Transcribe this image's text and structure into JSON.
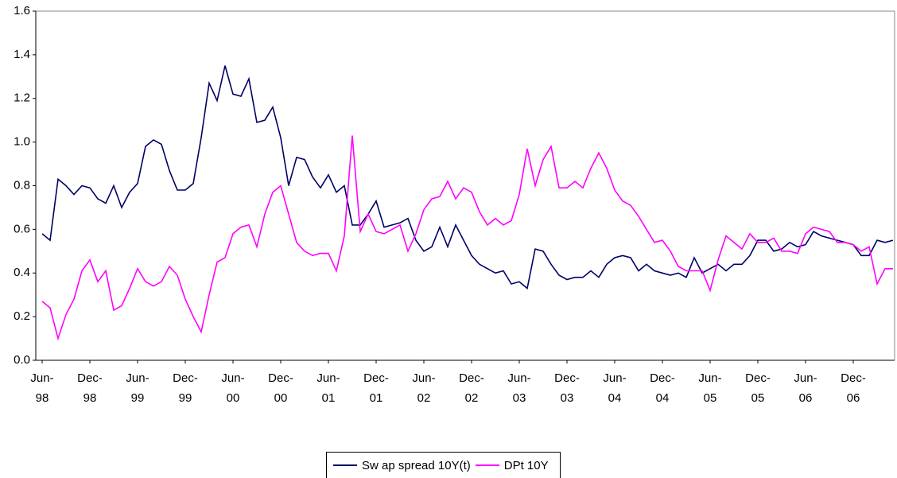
{
  "chart_data": {
    "type": "line",
    "categories": [
      "Jun-\n98",
      null,
      null,
      null,
      null,
      null,
      "Dec-\n98",
      null,
      null,
      null,
      null,
      null,
      "Jun-\n99",
      null,
      null,
      null,
      null,
      null,
      "Dec-\n99",
      null,
      null,
      null,
      null,
      null,
      "Jun-\n00",
      null,
      null,
      null,
      null,
      null,
      "Dec-\n00",
      null,
      null,
      null,
      null,
      null,
      "Jun-\n01",
      null,
      null,
      null,
      null,
      null,
      "Dec-\n01",
      null,
      null,
      null,
      null,
      null,
      "Jun-\n02",
      null,
      null,
      null,
      null,
      null,
      "Dec-\n02",
      null,
      null,
      null,
      null,
      null,
      "Jun-\n03",
      null,
      null,
      null,
      null,
      null,
      "Dec-\n03",
      null,
      null,
      null,
      null,
      null,
      "Jun-\n04",
      null,
      null,
      null,
      null,
      null,
      "Dec-\n04",
      null,
      null,
      null,
      null,
      null,
      "Jun-\n05",
      null,
      null,
      null,
      null,
      null,
      "Dec-\n05",
      null,
      null,
      null,
      null,
      null,
      "Jun-\n06",
      null,
      null,
      null,
      null,
      null,
      "Dec-\n06",
      null,
      null,
      null,
      null,
      null
    ],
    "series": [
      {
        "name": "Sw ap spread 10Y(t)",
        "color": "#000066",
        "values": [
          0.58,
          0.55,
          0.83,
          0.8,
          0.76,
          0.8,
          0.79,
          0.74,
          0.72,
          0.8,
          0.7,
          0.77,
          0.81,
          0.98,
          1.01,
          0.99,
          0.87,
          0.78,
          0.78,
          0.81,
          1.02,
          1.27,
          1.19,
          1.35,
          1.22,
          1.21,
          1.29,
          1.09,
          1.1,
          1.16,
          1.02,
          0.8,
          0.93,
          0.92,
          0.84,
          0.79,
          0.85,
          0.77,
          0.8,
          0.62,
          0.62,
          0.67,
          0.73,
          0.61,
          0.62,
          0.63,
          0.65,
          0.55,
          0.5,
          0.52,
          0.61,
          0.52,
          0.62,
          0.55,
          0.48,
          0.44,
          0.42,
          0.4,
          0.41,
          0.35,
          0.36,
          0.33,
          0.51,
          0.5,
          0.44,
          0.39,
          0.37,
          0.38,
          0.38,
          0.41,
          0.38,
          0.44,
          0.47,
          0.48,
          0.47,
          0.41,
          0.44,
          0.41,
          0.4,
          0.39,
          0.4,
          0.38,
          0.47,
          0.4,
          0.42,
          0.44,
          0.41,
          0.44,
          0.44,
          0.48,
          0.55,
          0.55,
          0.5,
          0.51,
          0.54,
          0.52,
          0.53,
          0.59,
          0.57,
          0.56,
          0.55,
          0.54,
          0.53,
          0.48,
          0.48,
          0.55,
          0.54,
          0.55
        ]
      },
      {
        "name": "DPt 10Y",
        "color": "#ff00ff",
        "values": [
          0.27,
          0.24,
          0.1,
          0.21,
          0.28,
          0.41,
          0.46,
          0.36,
          0.41,
          0.23,
          0.25,
          0.33,
          0.42,
          0.36,
          0.34,
          0.36,
          0.43,
          0.39,
          0.28,
          0.2,
          0.13,
          0.3,
          0.45,
          0.47,
          0.58,
          0.61,
          0.62,
          0.52,
          0.67,
          0.77,
          0.8,
          0.67,
          0.54,
          0.5,
          0.48,
          0.49,
          0.49,
          0.41,
          0.57,
          1.03,
          0.59,
          0.67,
          0.59,
          0.58,
          0.6,
          0.62,
          0.5,
          0.58,
          0.69,
          0.74,
          0.75,
          0.82,
          0.74,
          0.79,
          0.77,
          0.68,
          0.62,
          0.65,
          0.62,
          0.64,
          0.76,
          0.97,
          0.8,
          0.92,
          0.98,
          0.79,
          0.79,
          0.82,
          0.79,
          0.88,
          0.95,
          0.88,
          0.78,
          0.73,
          0.71,
          0.66,
          0.6,
          0.54,
          0.55,
          0.5,
          0.43,
          0.41,
          0.41,
          0.41,
          0.32,
          0.46,
          0.57,
          0.54,
          0.51,
          0.58,
          0.54,
          0.54,
          0.56,
          0.5,
          0.5,
          0.49,
          0.58,
          0.61,
          0.6,
          0.59,
          0.54,
          0.54,
          0.53,
          0.5,
          0.52,
          0.35,
          0.42,
          0.42
        ]
      }
    ],
    "ylim": [
      0,
      1.6
    ],
    "yticks": [
      {
        "value": 0,
        "label": "0.0"
      },
      0.2,
      0.4,
      0.6,
      0.8,
      {
        "value": 1,
        "label": "1.0"
      },
      1.2,
      1.4,
      1.6
    ]
  }
}
